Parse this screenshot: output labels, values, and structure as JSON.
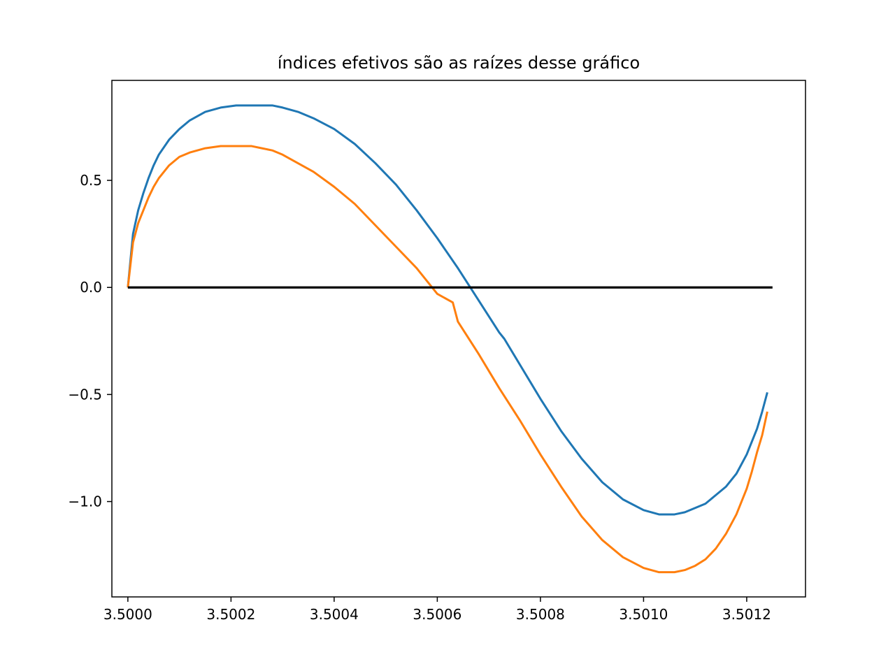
{
  "chart_data": {
    "type": "line",
    "title": "índices efetivos são as raízes desse gráfico",
    "xlabel": "",
    "ylabel": "",
    "xlim": [
      3.499969,
      3.501314
    ],
    "ylim": [
      -1.4454,
      0.967
    ],
    "x_ticks": [
      {
        "value": 3.5,
        "label": "3.5000"
      },
      {
        "value": 3.5002,
        "label": "3.5002"
      },
      {
        "value": 3.5004,
        "label": "3.5004"
      },
      {
        "value": 3.5006,
        "label": "3.5006"
      },
      {
        "value": 3.5008,
        "label": "3.5008"
      },
      {
        "value": 3.501,
        "label": "3.5010"
      },
      {
        "value": 3.5012,
        "label": "3.5012"
      }
    ],
    "y_ticks": [
      {
        "value": 0.5,
        "label": "0.5"
      },
      {
        "value": 0.0,
        "label": "0.0"
      },
      {
        "value": -0.5,
        "label": "−0.5"
      },
      {
        "value": -1.0,
        "label": "−1.0"
      }
    ],
    "grid": false,
    "series": [
      {
        "color": "#1f77b4",
        "x": [
          3.5,
          3.50001,
          3.50002,
          3.50003,
          3.50004,
          3.50005,
          3.50006,
          3.50008,
          3.5001,
          3.50012,
          3.50015,
          3.50018,
          3.50021,
          3.50024,
          3.50026,
          3.50028,
          3.5003,
          3.50033,
          3.50036,
          3.5004,
          3.50044,
          3.50048,
          3.50052,
          3.50056,
          3.5006,
          3.50064,
          3.50068,
          3.50072,
          3.50073,
          3.50076,
          3.5008,
          3.50084,
          3.50088,
          3.50092,
          3.50096,
          3.501,
          3.50103,
          3.50106,
          3.50108,
          3.5011,
          3.50112,
          3.50114,
          3.50116,
          3.50118,
          3.5012,
          3.50121,
          3.50122,
          3.50123,
          3.50124
        ],
        "y": [
          0.0,
          0.25,
          0.36,
          0.44,
          0.51,
          0.57,
          0.62,
          0.69,
          0.74,
          0.78,
          0.82,
          0.84,
          0.85,
          0.85,
          0.85,
          0.85,
          0.84,
          0.82,
          0.79,
          0.74,
          0.67,
          0.58,
          0.48,
          0.36,
          0.23,
          0.09,
          -0.06,
          -0.21,
          -0.24,
          -0.36,
          -0.52,
          -0.67,
          -0.8,
          -0.91,
          -0.99,
          -1.04,
          -1.06,
          -1.06,
          -1.05,
          -1.03,
          -1.01,
          -0.97,
          -0.93,
          -0.87,
          -0.78,
          -0.72,
          -0.66,
          -0.58,
          -0.49
        ]
      },
      {
        "color": "#ff7f0e",
        "x": [
          3.5,
          3.50001,
          3.50002,
          3.50003,
          3.50004,
          3.50005,
          3.50006,
          3.50008,
          3.5001,
          3.50012,
          3.50015,
          3.50018,
          3.50021,
          3.50024,
          3.50026,
          3.50028,
          3.5003,
          3.50033,
          3.50036,
          3.5004,
          3.50044,
          3.50048,
          3.50052,
          3.50056,
          3.5006,
          3.50063,
          3.50064,
          3.50068,
          3.50072,
          3.50076,
          3.5008,
          3.50084,
          3.50088,
          3.50092,
          3.50096,
          3.501,
          3.50103,
          3.50106,
          3.50108,
          3.5011,
          3.50112,
          3.50114,
          3.50116,
          3.50118,
          3.5012,
          3.50121,
          3.50122,
          3.50123,
          3.50124
        ],
        "y": [
          0.0,
          0.21,
          0.3,
          0.36,
          0.42,
          0.47,
          0.51,
          0.57,
          0.61,
          0.63,
          0.65,
          0.66,
          0.66,
          0.66,
          0.65,
          0.64,
          0.62,
          0.58,
          0.54,
          0.47,
          0.39,
          0.29,
          0.19,
          0.09,
          -0.03,
          -0.07,
          -0.16,
          -0.31,
          -0.47,
          -0.62,
          -0.78,
          -0.93,
          -1.07,
          -1.18,
          -1.26,
          -1.31,
          -1.33,
          -1.33,
          -1.32,
          -1.3,
          -1.27,
          -1.22,
          -1.15,
          -1.06,
          -0.94,
          -0.86,
          -0.77,
          -0.69,
          -0.58
        ]
      },
      {
        "color": "#000000",
        "x": [
          3.5,
          3.50125
        ],
        "y": [
          0.0,
          0.0
        ]
      }
    ]
  }
}
